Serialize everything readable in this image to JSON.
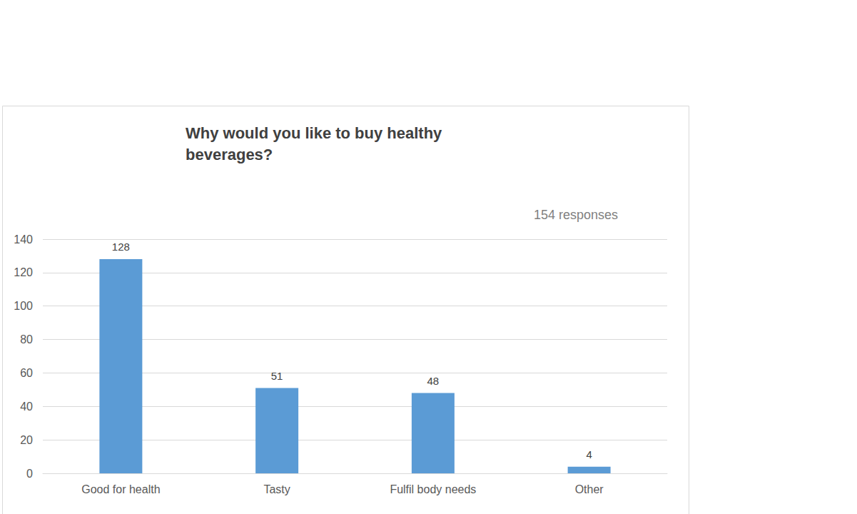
{
  "chart_data": {
    "type": "bar",
    "title": "Why would you like to buy healthy beverages?",
    "annotation": "154 responses",
    "categories": [
      "Good for health",
      "Tasty",
      "Fulfil body needs",
      "Other"
    ],
    "values": [
      128,
      51,
      48,
      4
    ],
    "color": "#5b9bd5",
    "ylim": [
      0,
      140
    ],
    "yticks": [
      0,
      20,
      40,
      60,
      80,
      100,
      120,
      140
    ],
    "grid": true,
    "data_labels": true
  }
}
